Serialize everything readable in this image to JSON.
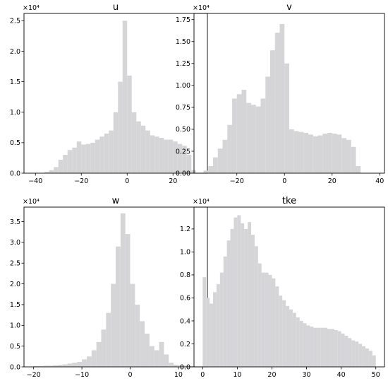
{
  "chart_data": [
    {
      "type": "bar",
      "title": "u",
      "multiplier": "×10⁴",
      "x": [
        -35,
        -33,
        -31,
        -29,
        -27,
        -25,
        -23,
        -21,
        -19,
        -17,
        -15,
        -13,
        -11,
        -9,
        -7,
        -5,
        -3,
        -1,
        1,
        3,
        5,
        7,
        9,
        11,
        13,
        15,
        17,
        19,
        21,
        23,
        25,
        27,
        29
      ],
      "values": [
        0.02,
        0.05,
        0.1,
        0.22,
        0.3,
        0.38,
        0.42,
        0.52,
        0.47,
        0.48,
        0.5,
        0.55,
        0.6,
        0.65,
        0.7,
        1.0,
        1.5,
        2.5,
        1.6,
        1.0,
        0.85,
        0.78,
        0.7,
        0.62,
        0.6,
        0.58,
        0.55,
        0.55,
        0.52,
        0.48,
        0.45,
        0.3,
        0.05
      ],
      "xlim": [
        -45,
        35
      ],
      "ylim": [
        0,
        2.62
      ],
      "xticks": [
        -40,
        -20,
        0,
        20
      ],
      "yticks": [
        0.0,
        0.5,
        1.0,
        1.5,
        2.0,
        2.5
      ],
      "xtick_labels": [
        "−40",
        "−20",
        "0",
        "20"
      ],
      "ytick_labels": [
        "0.0",
        "0.5",
        "1.0",
        "1.5",
        "2.0",
        "2.5"
      ]
    },
    {
      "type": "bar",
      "title": "v",
      "multiplier": "×10⁴",
      "x": [
        -33,
        -31,
        -29,
        -27,
        -25,
        -23,
        -21,
        -19,
        -17,
        -15,
        -13,
        -11,
        -9,
        -7,
        -5,
        -3,
        -1,
        1,
        3,
        5,
        7,
        9,
        11,
        13,
        15,
        17,
        19,
        21,
        23,
        25,
        27,
        29,
        31
      ],
      "values": [
        0.03,
        0.08,
        0.18,
        0.28,
        0.38,
        0.55,
        0.85,
        0.9,
        0.95,
        0.8,
        0.78,
        0.76,
        0.85,
        1.1,
        1.4,
        1.6,
        1.7,
        1.25,
        0.5,
        0.48,
        0.47,
        0.46,
        0.44,
        0.42,
        0.43,
        0.45,
        0.46,
        0.45,
        0.44,
        0.4,
        0.38,
        0.3,
        0.08
      ],
      "xlim": [
        -38,
        42
      ],
      "ylim": [
        0,
        1.82
      ],
      "xticks": [
        -20,
        0,
        20,
        40
      ],
      "yticks": [
        0.0,
        0.25,
        0.5,
        0.75,
        1.0,
        1.25,
        1.5,
        1.75
      ],
      "xtick_labels": [
        "−20",
        "0",
        "20",
        "40"
      ],
      "ytick_labels": [
        "0.00",
        "0.25",
        "0.50",
        "0.75",
        "1.00",
        "1.25",
        "1.50",
        "1.75"
      ]
    },
    {
      "type": "bar",
      "title": "w",
      "multiplier": "×10⁴",
      "x": [
        -19.5,
        -18.5,
        -17.5,
        -16.5,
        -15.5,
        -14.5,
        -13.5,
        -12.5,
        -11.5,
        -10.5,
        -9.5,
        -8.5,
        -7.5,
        -6.5,
        -5.5,
        -4.5,
        -3.5,
        -2.5,
        -1.5,
        -0.5,
        0.5,
        1.5,
        2.5,
        3.5,
        4.5,
        5.5,
        6.5,
        7.5,
        8.5,
        9.5,
        10.5,
        11.5,
        12.5,
        13.5
      ],
      "values": [
        0.02,
        0.02,
        0.03,
        0.03,
        0.04,
        0.05,
        0.06,
        0.08,
        0.1,
        0.12,
        0.18,
        0.25,
        0.4,
        0.6,
        0.9,
        1.3,
        2.0,
        2.9,
        3.7,
        3.2,
        2.0,
        1.5,
        1.1,
        0.8,
        0.5,
        0.4,
        0.6,
        0.3,
        0.1,
        0.05,
        0.04,
        0.03,
        0.02,
        0.01
      ],
      "xlim": [
        -22,
        16
      ],
      "ylim": [
        0,
        3.85
      ],
      "xticks": [
        -20,
        -10,
        0,
        10
      ],
      "yticks": [
        0.0,
        0.5,
        1.0,
        1.5,
        2.0,
        2.5,
        3.0,
        3.5
      ],
      "xtick_labels": [
        "−20",
        "−10",
        "0",
        "10"
      ],
      "ytick_labels": [
        "0.0",
        "0.5",
        "1.0",
        "1.5",
        "2.0",
        "2.5",
        "3.0",
        "3.5"
      ]
    },
    {
      "type": "bar",
      "title": "tke",
      "multiplier": "×10⁴",
      "x": [
        0.5,
        1.5,
        2.5,
        3.5,
        4.5,
        5.5,
        6.5,
        7.5,
        8.5,
        9.5,
        10.5,
        11.5,
        12.5,
        13.5,
        14.5,
        15.5,
        16.5,
        17.5,
        18.5,
        19.5,
        20.5,
        21.5,
        22.5,
        23.5,
        24.5,
        25.5,
        26.5,
        27.5,
        28.5,
        29.5,
        30.5,
        31.5,
        32.5,
        33.5,
        34.5,
        35.5,
        36.5,
        37.5,
        38.5,
        39.5,
        40.5,
        41.5,
        42.5,
        43.5,
        44.5,
        45.5,
        46.5,
        47.5,
        48.5,
        49.5
      ],
      "values": [
        0.78,
        0.6,
        0.55,
        0.65,
        0.72,
        0.82,
        0.96,
        1.1,
        1.2,
        1.3,
        1.32,
        1.25,
        1.2,
        1.26,
        1.15,
        1.05,
        0.9,
        0.82,
        0.82,
        0.8,
        0.77,
        0.7,
        0.62,
        0.58,
        0.53,
        0.5,
        0.47,
        0.43,
        0.4,
        0.38,
        0.36,
        0.35,
        0.34,
        0.34,
        0.34,
        0.34,
        0.33,
        0.33,
        0.32,
        0.31,
        0.29,
        0.27,
        0.25,
        0.23,
        0.22,
        0.2,
        0.18,
        0.16,
        0.14,
        0.1
      ],
      "xlim": [
        -2.5,
        52.5
      ],
      "ylim": [
        0,
        1.39
      ],
      "xticks": [
        0,
        10,
        20,
        30,
        40,
        50
      ],
      "yticks": [
        0.0,
        0.2,
        0.4,
        0.6,
        0.8,
        1.0,
        1.2
      ],
      "xtick_labels": [
        "0",
        "10",
        "20",
        "30",
        "40",
        "50"
      ],
      "ytick_labels": [
        "0.0",
        "0.2",
        "0.4",
        "0.6",
        "0.8",
        "1.0",
        "1.2"
      ]
    }
  ]
}
